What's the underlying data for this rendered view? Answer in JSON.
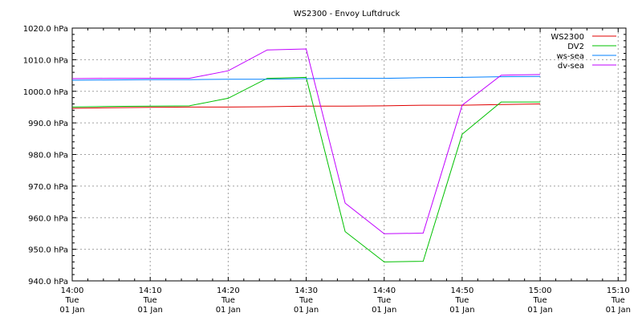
{
  "chart_data": {
    "type": "line",
    "title": "WS2300 - Envoy Luftdruck",
    "xlabel": "",
    "ylabel": "",
    "grid": true,
    "legend_position": "top-right",
    "ylim": [
      940.0,
      1020.0
    ],
    "yticks": [
      940,
      950,
      960,
      970,
      980,
      990,
      1000,
      1010,
      1020
    ],
    "ytick_labels": [
      "940.0 hPa",
      "950.0 hPa",
      "960.0 hPa",
      "970.0 hPa",
      "980.0 hPa",
      "990.0 hPa",
      "1000.0 hPa",
      "1010.0 hPa",
      "1020.0 hPa"
    ],
    "xlim": [
      "14:00",
      "15:11"
    ],
    "xticks": [
      {
        "time": "14:00",
        "day": "Tue",
        "date": "01 Jan"
      },
      {
        "time": "14:10",
        "day": "Tue",
        "date": "01 Jan"
      },
      {
        "time": "14:20",
        "day": "Tue",
        "date": "01 Jan"
      },
      {
        "time": "14:30",
        "day": "Tue",
        "date": "01 Jan"
      },
      {
        "time": "14:40",
        "day": "Tue",
        "date": "01 Jan"
      },
      {
        "time": "14:50",
        "day": "Tue",
        "date": "01 Jan"
      },
      {
        "time": "15:00",
        "day": "Tue",
        "date": "01 Jan"
      },
      {
        "time": "15:10",
        "day": "Tue",
        "date": "01 Jan"
      }
    ],
    "series": [
      {
        "name": "WS2300",
        "color": "#e00000",
        "points": [
          [
            "14:00",
            994.6
          ],
          [
            "14:05",
            994.8
          ],
          [
            "14:10",
            994.9
          ],
          [
            "14:15",
            995.0
          ],
          [
            "14:20",
            995.0
          ],
          [
            "14:25",
            995.1
          ],
          [
            "14:30",
            995.3
          ],
          [
            "14:35",
            995.3
          ],
          [
            "14:40",
            995.4
          ],
          [
            "14:45",
            995.6
          ],
          [
            "14:50",
            995.6
          ],
          [
            "14:55",
            995.8
          ],
          [
            "15:00",
            996.0
          ]
        ]
      },
      {
        "name": "DV2",
        "color": "#00c000",
        "points": [
          [
            "14:00",
            995.0
          ],
          [
            "14:05",
            995.2
          ],
          [
            "14:10",
            995.3
          ],
          [
            "14:15",
            995.4
          ],
          [
            "14:20",
            997.8
          ],
          [
            "14:25",
            1004.1
          ],
          [
            "14:30",
            1004.4
          ],
          [
            "14:35",
            955.6
          ],
          [
            "14:40",
            946.0
          ],
          [
            "14:45",
            946.2
          ],
          [
            "14:50",
            986.4
          ],
          [
            "14:55",
            996.6
          ],
          [
            "15:00",
            996.6
          ]
        ]
      },
      {
        "name": "ws-sea",
        "color": "#0080ff",
        "points": [
          [
            "14:00",
            1003.5
          ],
          [
            "14:05",
            1003.6
          ],
          [
            "14:10",
            1003.7
          ],
          [
            "14:15",
            1003.7
          ],
          [
            "14:20",
            1003.8
          ],
          [
            "14:25",
            1003.8
          ],
          [
            "14:30",
            1004.0
          ],
          [
            "14:35",
            1004.1
          ],
          [
            "14:40",
            1004.1
          ],
          [
            "14:45",
            1004.3
          ],
          [
            "14:50",
            1004.4
          ],
          [
            "14:55",
            1004.6
          ],
          [
            "15:00",
            1004.7
          ]
        ]
      },
      {
        "name": "dv-sea",
        "color": "#c000ff",
        "points": [
          [
            "14:00",
            1004.0
          ],
          [
            "14:05",
            1004.1
          ],
          [
            "14:10",
            1004.1
          ],
          [
            "14:15",
            1004.1
          ],
          [
            "14:20",
            1006.5
          ],
          [
            "14:25",
            1013.1
          ],
          [
            "14:30",
            1013.4
          ],
          [
            "14:35",
            964.6
          ],
          [
            "14:40",
            954.9
          ],
          [
            "14:45",
            955.1
          ],
          [
            "14:50",
            995.6
          ],
          [
            "14:55",
            1005.1
          ],
          [
            "15:00",
            1005.3
          ]
        ]
      }
    ]
  }
}
